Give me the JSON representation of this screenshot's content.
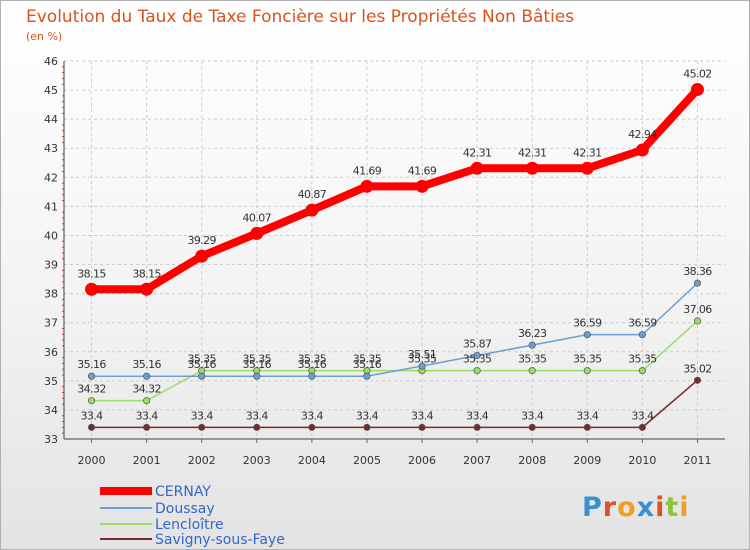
{
  "chart_data": {
    "type": "line",
    "title": "Evolution du Taux de Taxe Foncière sur les Propriétés Non Bâties",
    "subtitle": "(en %)",
    "x": [
      "2000",
      "2001",
      "2002",
      "2003",
      "2004",
      "2005",
      "2006",
      "2007",
      "2008",
      "2009",
      "2010",
      "2011"
    ],
    "ylim": [
      33,
      46
    ],
    "yticks": [
      "33",
      "34",
      "35",
      "36",
      "37",
      "38",
      "39",
      "40",
      "41",
      "42",
      "43",
      "44",
      "45",
      "46"
    ],
    "grid": true,
    "legend": "bottom-left",
    "series": [
      {
        "name": "CERNAY",
        "color": "#ff0000",
        "values": [
          38.15,
          38.15,
          39.29,
          40.07,
          40.87,
          41.69,
          41.69,
          42.31,
          42.31,
          42.31,
          42.94,
          45.02
        ],
        "labels": [
          "38.15",
          "38.15",
          "39.29",
          "40.07",
          "40.87",
          "41.69",
          "41.69",
          "42.31",
          "42.31",
          "42.31",
          "42.94",
          "45.02"
        ]
      },
      {
        "name": "Doussay",
        "color": "#6a9fd4",
        "values": [
          35.16,
          35.16,
          35.16,
          35.16,
          35.16,
          35.16,
          35.51,
          35.87,
          36.23,
          36.59,
          36.59,
          38.36
        ],
        "labels": [
          "35.16",
          "35.16",
          "35.16",
          "35.16",
          "35.16",
          "35.16",
          "35.51",
          "35.87",
          "36.23",
          "36.59",
          "36.59",
          "38.36"
        ]
      },
      {
        "name": "Lencloître",
        "color": "#99dd66",
        "values": [
          34.32,
          34.32,
          35.35,
          35.35,
          35.35,
          35.35,
          35.35,
          35.35,
          35.35,
          35.35,
          35.35,
          37.06
        ],
        "labels": [
          "34.32",
          "34.32",
          "35.35",
          "35.35",
          "35.35",
          "35.35",
          "35.35",
          "35.35",
          "35.35",
          "35.35",
          "35.35",
          "37.06"
        ]
      },
      {
        "name": "Savigny-sous-Faye",
        "color": "#7a2a2a",
        "values": [
          33.4,
          33.4,
          33.4,
          33.4,
          33.4,
          33.4,
          33.4,
          33.4,
          33.4,
          33.4,
          33.4,
          35.02
        ],
        "labels": [
          "33.4",
          "33.4",
          "33.4",
          "33.4",
          "33.4",
          "33.4",
          "33.4",
          "33.4",
          "33.4",
          "33.4",
          "33.4",
          "35.02"
        ]
      }
    ]
  },
  "logo": {
    "text": "Proxiti"
  }
}
